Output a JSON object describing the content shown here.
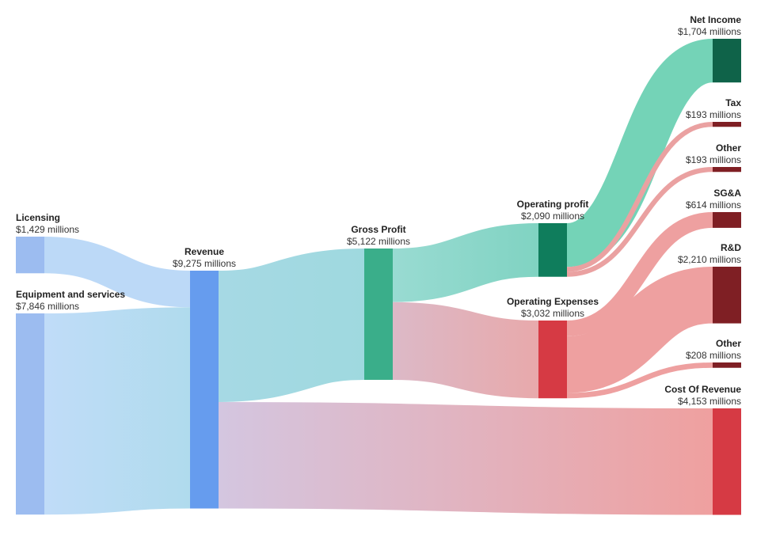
{
  "chart_data": {
    "type": "sankey",
    "unit_suffix": "millions",
    "nodes": [
      {
        "id": "licensing",
        "name": "Licensing",
        "label": "$1,429 millions",
        "value": 1429,
        "color": "#9cbcf0"
      },
      {
        "id": "equipment",
        "name": "Equipment and services",
        "label": "$7,846 millions",
        "value": 7846,
        "color": "#9cbcf0"
      },
      {
        "id": "revenue",
        "name": "Revenue",
        "label": "$9,275 millions",
        "value": 9275,
        "color": "#669cee"
      },
      {
        "id": "gross_profit",
        "name": "Gross Profit",
        "label": "$5,122 millions",
        "value": 5122,
        "color": "#3aae8a"
      },
      {
        "id": "operating_profit",
        "name": "Operating profit",
        "label": "$2,090 millions",
        "value": 2090,
        "color": "#0f7d5c"
      },
      {
        "id": "operating_expenses",
        "name": "Operating Expenses",
        "label": "$3,032 millions",
        "value": 3032,
        "color": "#d63a44"
      },
      {
        "id": "net_income",
        "name": "Net Income",
        "label": "$1,704 millions",
        "value": 1704,
        "color": "#0f6349"
      },
      {
        "id": "tax",
        "name": "Tax",
        "label": "$193 millions",
        "value": 193,
        "color": "#7f1f24"
      },
      {
        "id": "other_op",
        "name": "Other",
        "label": "$193 millions",
        "value": 193,
        "color": "#7f1f24"
      },
      {
        "id": "sga",
        "name": "SG&A",
        "label": "$614 millions",
        "value": 614,
        "color": "#7f1f24"
      },
      {
        "id": "rnd",
        "name": "R&D",
        "label": "$2,210 millions",
        "value": 2210,
        "color": "#7f1f24"
      },
      {
        "id": "other_exp",
        "name": "Other",
        "label": "$208 millions",
        "value": 208,
        "color": "#7f1f24"
      },
      {
        "id": "cost_of_revenue",
        "name": "Cost Of Revenue",
        "label": "$4,153 millions",
        "value": 4153,
        "color": "#d63a44"
      }
    ],
    "links": [
      {
        "source": "licensing",
        "target": "revenue",
        "value": 1429,
        "colors": [
          "#bcd9f7",
          "#bcd9f7"
        ]
      },
      {
        "source": "equipment",
        "target": "revenue",
        "value": 7846,
        "colors": [
          "#c0dcf8",
          "#b0dbed"
        ]
      },
      {
        "source": "revenue",
        "target": "gross_profit",
        "value": 5122,
        "colors": [
          "#a6d9e4",
          "#9fd9df"
        ]
      },
      {
        "source": "revenue",
        "target": "cost_of_revenue",
        "value": 4153,
        "colors": [
          "#d4c6e0",
          "#efa09f"
        ]
      },
      {
        "source": "gross_profit",
        "target": "operating_profit",
        "value": 2090,
        "colors": [
          "#99dbd2",
          "#80d3c2"
        ]
      },
      {
        "source": "gross_profit",
        "target": "operating_expenses",
        "value": 3032,
        "colors": [
          "#dcb9c7",
          "#e8a9ab"
        ]
      },
      {
        "source": "operating_profit",
        "target": "net_income",
        "value": 1704,
        "colors": [
          "#74d3b7",
          "#74d3b7"
        ]
      },
      {
        "source": "operating_profit",
        "target": "tax",
        "value": 193,
        "colors": [
          "#eaa1a1",
          "#eaa1a1"
        ]
      },
      {
        "source": "operating_profit",
        "target": "other_op",
        "value": 193,
        "colors": [
          "#eaa1a1",
          "#eaa1a1"
        ]
      },
      {
        "source": "operating_expenses",
        "target": "sga",
        "value": 614,
        "colors": [
          "#eea0a0",
          "#eea0a0"
        ]
      },
      {
        "source": "operating_expenses",
        "target": "rnd",
        "value": 2210,
        "colors": [
          "#eea0a0",
          "#eea0a0"
        ]
      },
      {
        "source": "operating_expenses",
        "target": "other_exp",
        "value": 208,
        "colors": [
          "#eea0a0",
          "#eea0a0"
        ]
      }
    ]
  }
}
